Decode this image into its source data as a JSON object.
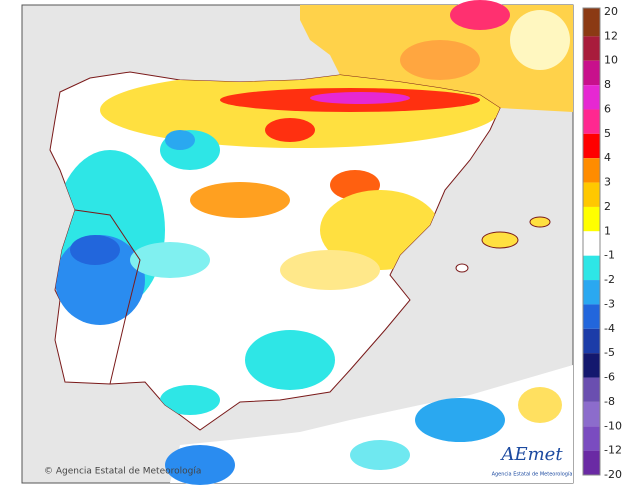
{
  "legend": {
    "labels": [
      "20",
      "12",
      "10",
      "8",
      "6",
      "5",
      "4",
      "3",
      "2",
      "1",
      "-1",
      "-2",
      "-3",
      "-4",
      "-5",
      "-6",
      "-8",
      "-10",
      "-12",
      "-20"
    ],
    "colors": [
      "#8b3a14",
      "#a81c3c",
      "#c8108c",
      "#e628d2",
      "#ff2890",
      "#ff0000",
      "#ff8c00",
      "#ffc800",
      "#ffff00",
      "#ffffff",
      "#2ee6e6",
      "#2aa8f0",
      "#2266dc",
      "#1c3ca8",
      "#14186e",
      "#6a4fb0",
      "#8c6ccc",
      "#7a4cc0",
      "#6a2aa4"
    ]
  },
  "credit": "© Agencia Estatal de Meteorología",
  "logo": {
    "name": "AEmet",
    "subtitle": "Agencia Estatal de Meteorología"
  }
}
